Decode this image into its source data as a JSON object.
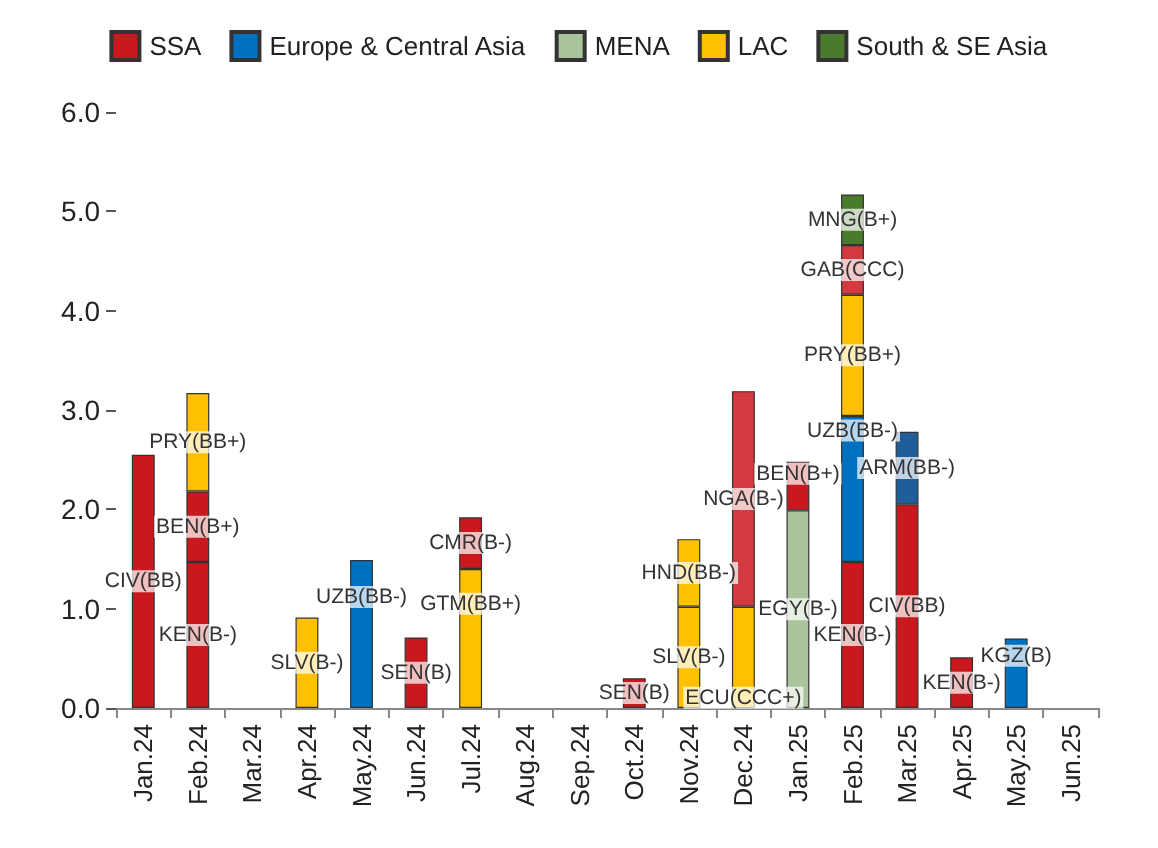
{
  "chart_data": {
    "type": "bar",
    "stacked": true,
    "legend": "top",
    "grid": false,
    "categories": [
      "Jan.24",
      "Feb.24",
      "Mar.24",
      "Apr.24",
      "May.24",
      "Jun.24",
      "Jul.24",
      "Aug.24",
      "Sep.24",
      "Oct.24",
      "Nov.24",
      "Dec.24",
      "Jan.25",
      "Feb.25",
      "Mar.25",
      "Apr.25",
      "May.25",
      "Jun.25"
    ],
    "ylim": [
      0,
      6
    ],
    "yticks": [
      {
        "value": 0,
        "label": "0.0"
      },
      {
        "value": 1,
        "label": "1.0"
      },
      {
        "value": 2,
        "label": "2.0"
      },
      {
        "value": 3,
        "label": "3.0"
      },
      {
        "value": 4,
        "label": "4.0"
      },
      {
        "value": 5,
        "label": "5.0"
      },
      {
        "value": 6,
        "label": "6.0"
      }
    ],
    "series": [
      {
        "name": "SSA",
        "color": "#c8191e",
        "values": [
          2.55,
          1.47,
          null,
          null,
          null,
          0.71,
          null,
          null,
          null,
          0.3,
          null,
          null,
          null,
          1.47,
          2.05,
          0.51,
          null,
          null
        ],
        "value_labels": [
          "CIV(BB)",
          "KEN(B-)",
          null,
          null,
          null,
          "SEN(B)",
          null,
          null,
          null,
          "SEN(B)",
          null,
          null,
          null,
          "KEN(B-)",
          "CIV(BB)",
          "KEN(B-)",
          null,
          null
        ]
      },
      {
        "color": "#c8191e",
        "values": [
          null,
          0.71,
          null,
          null,
          null,
          null,
          null,
          null,
          null,
          null,
          null,
          null,
          null,
          null,
          null,
          null,
          null,
          null
        ],
        "value_labels": [
          null,
          "BEN(B+)",
          null,
          null,
          null,
          null,
          null,
          null,
          null,
          null,
          null,
          null,
          null,
          null,
          null,
          null,
          null,
          null
        ]
      },
      {
        "name": "Europe & Central Asia",
        "color": "#0070c0",
        "values": [
          null,
          null,
          null,
          null,
          1.49,
          null,
          null,
          null,
          null,
          null,
          null,
          null,
          null,
          1.47,
          null,
          null,
          0.7,
          null
        ],
        "value_labels": [
          null,
          null,
          null,
          null,
          "UZB(BB-)",
          null,
          null,
          null,
          null,
          null,
          null,
          null,
          null,
          "UZB(BB-)",
          null,
          null,
          "KGZ(B)",
          null
        ]
      },
      {
        "color": "#1f5f99",
        "values": [
          null,
          null,
          null,
          null,
          null,
          null,
          null,
          null,
          null,
          null,
          null,
          null,
          null,
          null,
          0.73,
          null,
          null,
          null
        ],
        "value_labels": [
          null,
          null,
          null,
          null,
          null,
          null,
          null,
          null,
          null,
          null,
          null,
          null,
          null,
          null,
          "ARM(BB-)",
          null,
          null,
          null
        ]
      },
      {
        "name": "MENA",
        "color": "#a9c49a",
        "values": [
          null,
          null,
          null,
          null,
          null,
          null,
          null,
          null,
          null,
          null,
          null,
          null,
          1.99,
          null,
          null,
          null,
          null,
          null
        ],
        "value_labels": [
          null,
          null,
          null,
          null,
          null,
          null,
          null,
          null,
          null,
          null,
          null,
          null,
          "EGY(B-)",
          null,
          null,
          null,
          null,
          null
        ]
      },
      {
        "name": "LAC",
        "color": "#ffc000",
        "values": [
          null,
          0.99,
          null,
          0.91,
          null,
          null,
          1.4,
          null,
          null,
          null,
          1.02,
          1.02,
          null,
          1.22,
          null,
          null,
          null,
          null
        ],
        "value_labels": [
          null,
          "PRY(BB+)",
          null,
          "SLV(B-)",
          null,
          null,
          "GTM(BB+)",
          null,
          null,
          null,
          "SLV(B-)",
          "ECU(CCC+)",
          null,
          "PRY(BB+)",
          null,
          null,
          null,
          null
        ]
      },
      {
        "color": "#ffc000",
        "values": [
          null,
          null,
          null,
          null,
          null,
          null,
          null,
          null,
          null,
          null,
          0.68,
          null,
          null,
          null,
          null,
          null,
          null,
          null
        ],
        "value_labels": [
          null,
          null,
          null,
          null,
          null,
          null,
          null,
          null,
          null,
          null,
          "HND(BB-)",
          null,
          null,
          null,
          null,
          null,
          null,
          null
        ]
      },
      {
        "color": "#c8191e",
        "values": [
          null,
          null,
          null,
          null,
          null,
          null,
          0.52,
          null,
          null,
          null,
          null,
          null,
          0.49,
          null,
          null,
          null,
          null,
          null
        ],
        "value_labels": [
          null,
          null,
          null,
          null,
          null,
          null,
          "CMR(B-)",
          null,
          null,
          null,
          null,
          null,
          "BEN(B+)",
          null,
          null,
          null,
          null,
          null
        ]
      },
      {
        "color": "#d33a3f",
        "values": [
          null,
          null,
          null,
          null,
          null,
          null,
          null,
          null,
          null,
          null,
          null,
          2.17,
          null,
          0.5,
          null,
          null,
          null,
          null
        ],
        "value_labels": [
          null,
          null,
          null,
          null,
          null,
          null,
          null,
          null,
          null,
          null,
          null,
          "NGA(B-)",
          null,
          "GAB(CCC)",
          null,
          null,
          null,
          null
        ]
      },
      {
        "name": "South & SE Asia",
        "color": "#4a7a2c",
        "values": [
          null,
          null,
          null,
          null,
          null,
          null,
          null,
          null,
          null,
          null,
          null,
          null,
          null,
          0.51,
          null,
          null,
          null,
          null
        ],
        "value_labels": [
          null,
          null,
          null,
          null,
          null,
          null,
          null,
          null,
          null,
          null,
          null,
          null,
          null,
          "MNG(B+)",
          null,
          null,
          null,
          null
        ]
      }
    ]
  }
}
